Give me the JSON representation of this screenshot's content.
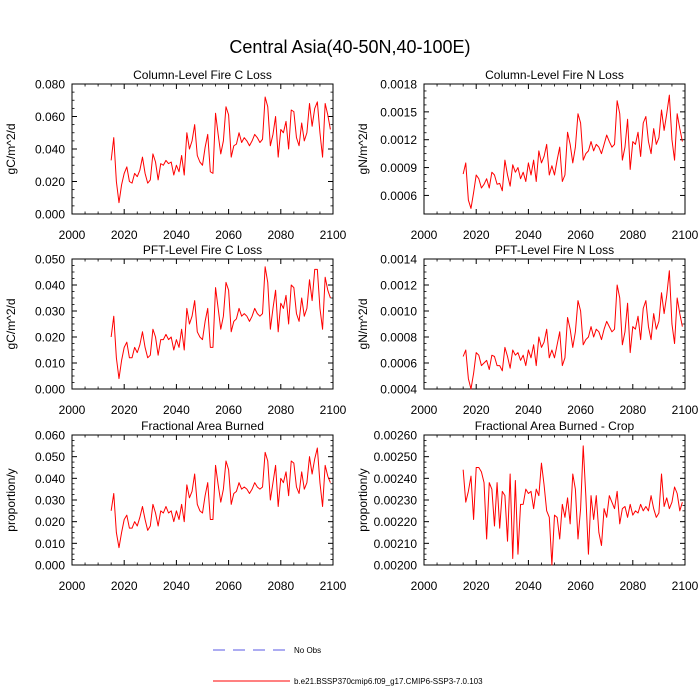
{
  "figure": {
    "title": "Central Asia(40-50N,40-100E)",
    "legend": {
      "obs_label": "No Obs",
      "model_label": "b.e21.BSSP370cmip6.f09_g17.CMIP6-SSP3-7.0.103",
      "obs_color": "#5a5ae6",
      "model_color": "#ff0000"
    }
  },
  "chart_data": [
    {
      "type": "line",
      "title": "Column-Level Fire C Loss",
      "ylabel": "gC/m^2/d",
      "xlabel": "",
      "xlim": [
        2000,
        2100
      ],
      "ylim": [
        0.0,
        0.08
      ],
      "xticks": [
        2000,
        2020,
        2040,
        2060,
        2080,
        2100
      ],
      "yticks": [
        0.0,
        0.02,
        0.04,
        0.06,
        0.08
      ],
      "ytick_labels": [
        "0.000",
        "0.020",
        "0.040",
        "0.060",
        "0.080"
      ],
      "series": [
        {
          "name": "b.e21.BSSP370cmip6.f09_g17.CMIP6-SSP3-7.0.103",
          "color": "#ff0000",
          "x_start": 2015,
          "values": [
            0.033,
            0.047,
            0.02,
            0.007,
            0.018,
            0.025,
            0.029,
            0.02,
            0.019,
            0.025,
            0.023,
            0.027,
            0.035,
            0.025,
            0.019,
            0.021,
            0.037,
            0.032,
            0.021,
            0.031,
            0.03,
            0.033,
            0.031,
            0.032,
            0.024,
            0.03,
            0.026,
            0.036,
            0.024,
            0.05,
            0.04,
            0.045,
            0.055,
            0.036,
            0.032,
            0.03,
            0.041,
            0.049,
            0.026,
            0.025,
            0.062,
            0.049,
            0.037,
            0.045,
            0.066,
            0.061,
            0.035,
            0.042,
            0.043,
            0.05,
            0.044,
            0.047,
            0.045,
            0.042,
            0.045,
            0.049,
            0.047,
            0.044,
            0.046,
            0.072,
            0.066,
            0.042,
            0.049,
            0.06,
            0.035,
            0.052,
            0.05,
            0.057,
            0.04,
            0.064,
            0.063,
            0.047,
            0.042,
            0.056,
            0.045,
            0.05,
            0.068,
            0.054,
            0.065,
            0.069,
            0.05,
            0.035,
            0.068,
            0.061,
            0.052
          ]
        }
      ]
    },
    {
      "type": "line",
      "title": "Column-Level Fire N Loss",
      "ylabel": "gN/m^2/d",
      "xlabel": "",
      "xlim": [
        2000,
        2100
      ],
      "ylim": [
        0.0004,
        0.0018
      ],
      "xticks": [
        2000,
        2020,
        2040,
        2060,
        2080,
        2100
      ],
      "yticks": [
        0.0006,
        0.0009,
        0.0012,
        0.0015,
        0.0018
      ],
      "ytick_labels": [
        "0.0006",
        "0.0009",
        "0.0012",
        "0.0015",
        "0.0018"
      ],
      "series": [
        {
          "name": "b.e21.BSSP370cmip6.f09_g17.CMIP6-SSP3-7.0.103",
          "color": "#ff0000",
          "x_start": 2015,
          "values": [
            0.00083,
            0.00095,
            0.00055,
            0.00046,
            0.00063,
            0.00082,
            0.00078,
            0.00068,
            0.00072,
            0.00078,
            0.00068,
            0.00085,
            0.00082,
            0.00072,
            0.00073,
            0.00065,
            0.00098,
            0.00082,
            0.0007,
            0.00093,
            0.00085,
            0.0009,
            0.00078,
            0.00085,
            0.00075,
            0.00095,
            0.00082,
            0.00098,
            0.00075,
            0.00108,
            0.00095,
            0.00102,
            0.00115,
            0.00082,
            0.00092,
            0.00082,
            0.00098,
            0.00112,
            0.00075,
            0.00082,
            0.00128,
            0.00115,
            0.00095,
            0.00112,
            0.00148,
            0.00138,
            0.00098,
            0.00105,
            0.00108,
            0.00118,
            0.00108,
            0.00115,
            0.00112,
            0.00105,
            0.00115,
            0.00125,
            0.00118,
            0.00112,
            0.00115,
            0.00162,
            0.00148,
            0.00098,
            0.00112,
            0.00142,
            0.00088,
            0.00118,
            0.00115,
            0.00128,
            0.00102,
            0.00138,
            0.00145,
            0.00118,
            0.00105,
            0.00132,
            0.00115,
            0.00122,
            0.00152,
            0.0013,
            0.00148,
            0.00168,
            0.0012,
            0.00098,
            0.00148,
            0.00132,
            0.00118
          ]
        }
      ]
    },
    {
      "type": "line",
      "title": "PFT-Level Fire C Loss",
      "ylabel": "gC/m^2/d",
      "xlabel": "",
      "xlim": [
        2000,
        2100
      ],
      "ylim": [
        0.0,
        0.05
      ],
      "xticks": [
        2000,
        2020,
        2040,
        2060,
        2080,
        2100
      ],
      "yticks": [
        0.0,
        0.01,
        0.02,
        0.03,
        0.04,
        0.05
      ],
      "ytick_labels": [
        "0.000",
        "0.010",
        "0.020",
        "0.030",
        "0.040",
        "0.050"
      ],
      "series": [
        {
          "name": "b.e21.BSSP370cmip6.f09_g17.CMIP6-SSP3-7.0.103",
          "color": "#ff0000",
          "x_start": 2015,
          "values": [
            0.02,
            0.028,
            0.012,
            0.004,
            0.011,
            0.016,
            0.018,
            0.012,
            0.012,
            0.016,
            0.014,
            0.017,
            0.022,
            0.016,
            0.012,
            0.013,
            0.023,
            0.02,
            0.013,
            0.019,
            0.019,
            0.021,
            0.019,
            0.02,
            0.015,
            0.019,
            0.016,
            0.023,
            0.015,
            0.031,
            0.025,
            0.028,
            0.034,
            0.022,
            0.02,
            0.019,
            0.026,
            0.031,
            0.016,
            0.016,
            0.039,
            0.031,
            0.023,
            0.028,
            0.041,
            0.038,
            0.022,
            0.026,
            0.027,
            0.031,
            0.028,
            0.029,
            0.028,
            0.026,
            0.028,
            0.031,
            0.029,
            0.028,
            0.029,
            0.047,
            0.041,
            0.023,
            0.031,
            0.038,
            0.022,
            0.033,
            0.031,
            0.036,
            0.025,
            0.04,
            0.039,
            0.029,
            0.026,
            0.035,
            0.028,
            0.031,
            0.042,
            0.034,
            0.046,
            0.046,
            0.031,
            0.023,
            0.043,
            0.038,
            0.035
          ]
        }
      ]
    },
    {
      "type": "line",
      "title": "PFT-Level Fire N Loss",
      "ylabel": "gN/m^2/d",
      "xlabel": "",
      "xlim": [
        2000,
        2100
      ],
      "ylim": [
        0.0004,
        0.0014
      ],
      "xticks": [
        2000,
        2020,
        2040,
        2060,
        2080,
        2100
      ],
      "yticks": [
        0.0004,
        0.0006,
        0.0008,
        0.001,
        0.0012,
        0.0014
      ],
      "ytick_labels": [
        "0.0004",
        "0.0006",
        "0.0008",
        "0.0010",
        "0.0012",
        "0.0014"
      ],
      "series": [
        {
          "name": "b.e21.BSSP370cmip6.f09_g17.CMIP6-SSP3-7.0.103",
          "color": "#ff0000",
          "x_start": 2015,
          "values": [
            0.00065,
            0.0007,
            0.00048,
            0.0004,
            0.00052,
            0.00068,
            0.00066,
            0.00058,
            0.0006,
            0.00062,
            0.00055,
            0.00066,
            0.00065,
            0.00058,
            0.00058,
            0.00054,
            0.00072,
            0.00065,
            0.00056,
            0.0007,
            0.00066,
            0.00068,
            0.00062,
            0.00066,
            0.00058,
            0.0007,
            0.00064,
            0.00074,
            0.00058,
            0.0008,
            0.00072,
            0.00076,
            0.00086,
            0.00064,
            0.0007,
            0.00064,
            0.00074,
            0.00084,
            0.00058,
            0.00064,
            0.00095,
            0.00086,
            0.00072,
            0.00084,
            0.00108,
            0.001,
            0.00074,
            0.00078,
            0.0008,
            0.00088,
            0.0008,
            0.00086,
            0.00084,
            0.00078,
            0.00086,
            0.00092,
            0.00088,
            0.00084,
            0.00086,
            0.0012,
            0.0011,
            0.00074,
            0.00084,
            0.00106,
            0.00068,
            0.00088,
            0.00086,
            0.00096,
            0.00078,
            0.00102,
            0.00108,
            0.00088,
            0.00078,
            0.00098,
            0.00086,
            0.00092,
            0.00114,
            0.00098,
            0.00112,
            0.00131,
            0.0009,
            0.00075,
            0.0011,
            0.00098,
            0.00088
          ]
        }
      ]
    },
    {
      "type": "line",
      "title": "Fractional Area Burned",
      "ylabel": "proportion/y",
      "xlabel": "",
      "xlim": [
        2000,
        2100
      ],
      "ylim": [
        0.0,
        0.06
      ],
      "xticks": [
        2000,
        2020,
        2040,
        2060,
        2080,
        2100
      ],
      "yticks": [
        0.0,
        0.01,
        0.02,
        0.03,
        0.04,
        0.05,
        0.06
      ],
      "ytick_labels": [
        "0.000",
        "0.010",
        "0.020",
        "0.030",
        "0.040",
        "0.050",
        "0.060"
      ],
      "series": [
        {
          "name": "b.e21.BSSP370cmip6.f09_g17.CMIP6-SSP3-7.0.103",
          "color": "#ff0000",
          "x_start": 2015,
          "values": [
            0.025,
            0.033,
            0.015,
            0.008,
            0.015,
            0.021,
            0.023,
            0.017,
            0.017,
            0.02,
            0.018,
            0.022,
            0.027,
            0.021,
            0.016,
            0.018,
            0.028,
            0.024,
            0.018,
            0.025,
            0.024,
            0.027,
            0.024,
            0.025,
            0.02,
            0.025,
            0.021,
            0.028,
            0.02,
            0.037,
            0.031,
            0.034,
            0.042,
            0.028,
            0.025,
            0.024,
            0.032,
            0.038,
            0.021,
            0.021,
            0.046,
            0.037,
            0.029,
            0.035,
            0.048,
            0.044,
            0.028,
            0.033,
            0.034,
            0.038,
            0.035,
            0.036,
            0.035,
            0.033,
            0.035,
            0.038,
            0.036,
            0.035,
            0.036,
            0.052,
            0.048,
            0.03,
            0.038,
            0.046,
            0.027,
            0.04,
            0.038,
            0.043,
            0.032,
            0.048,
            0.047,
            0.036,
            0.033,
            0.043,
            0.035,
            0.038,
            0.05,
            0.042,
            0.049,
            0.054,
            0.038,
            0.027,
            0.046,
            0.041,
            0.038
          ]
        }
      ]
    },
    {
      "type": "line",
      "title": "Fractional Area Burned - Crop",
      "ylabel": "proportion/y",
      "xlabel": "",
      "xlim": [
        2000,
        2100
      ],
      "ylim": [
        0.002,
        0.0026
      ],
      "xticks": [
        2000,
        2020,
        2040,
        2060,
        2080,
        2100
      ],
      "yticks": [
        0.002,
        0.0021,
        0.0022,
        0.0023,
        0.0024,
        0.0025,
        0.0026
      ],
      "ytick_labels": [
        "0.00200",
        "0.00210",
        "0.00220",
        "0.00230",
        "0.00240",
        "0.00250",
        "0.00260"
      ],
      "series": [
        {
          "name": "b.e21.BSSP370cmip6.f09_g17.CMIP6-SSP3-7.0.103",
          "color": "#ff0000",
          "x_start": 2015,
          "values": [
            0.00244,
            0.00229,
            0.00234,
            0.00241,
            0.00221,
            0.00245,
            0.00245,
            0.00243,
            0.00238,
            0.00212,
            0.00238,
            0.00235,
            0.00218,
            0.00238,
            0.00217,
            0.00234,
            0.00232,
            0.00211,
            0.00242,
            0.00203,
            0.00239,
            0.00205,
            0.00228,
            0.00228,
            0.00235,
            0.00233,
            0.00234,
            0.00226,
            0.00235,
            0.00232,
            0.00247,
            0.00237,
            0.00225,
            0.00222,
            0.002,
            0.00223,
            0.00222,
            0.00212,
            0.00228,
            0.00222,
            0.00231,
            0.00219,
            0.00242,
            0.00235,
            0.00212,
            0.00226,
            0.00255,
            0.00232,
            0.00205,
            0.00232,
            0.00221,
            0.00232,
            0.00215,
            0.00209,
            0.00226,
            0.00222,
            0.00232,
            0.00229,
            0.00226,
            0.00234,
            0.00219,
            0.00226,
            0.00227,
            0.00222,
            0.00228,
            0.00223,
            0.00225,
            0.00224,
            0.00228,
            0.00225,
            0.00227,
            0.00225,
            0.00232,
            0.00226,
            0.00222,
            0.00224,
            0.00242,
            0.00227,
            0.00231,
            0.00226,
            0.00229,
            0.00236,
            0.00233,
            0.00225,
            0.00229
          ]
        }
      ]
    }
  ]
}
